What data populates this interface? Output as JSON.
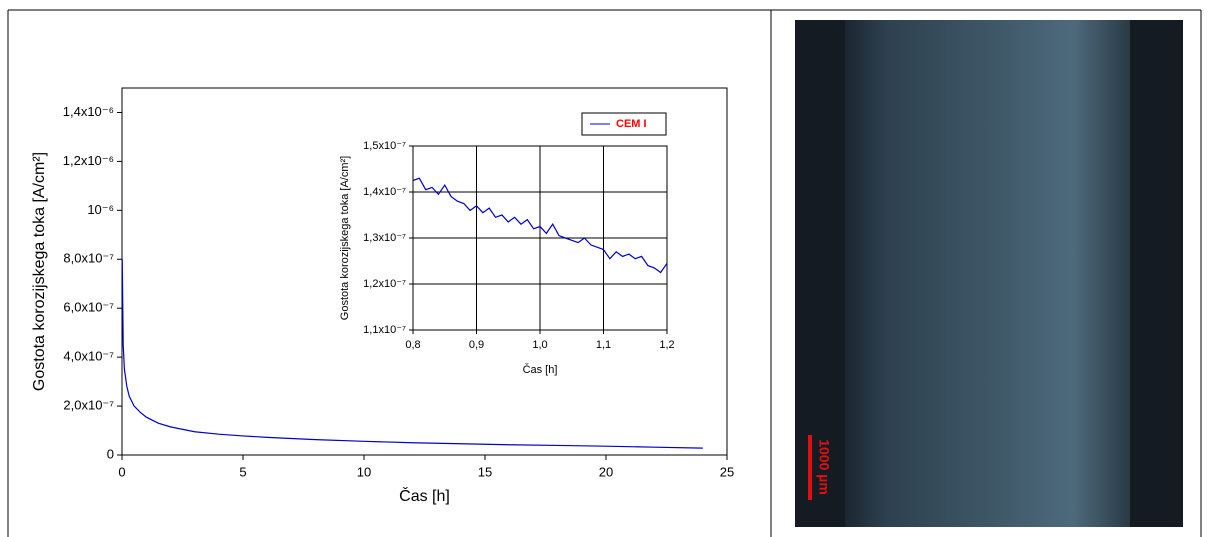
{
  "chart_data": [
    {
      "type": "line",
      "x_label": "Čas [h]",
      "y_label": "Gostota korozijskega toka [A/cm²]",
      "xlim": [
        0,
        25
      ],
      "xticks": [
        0,
        5,
        10,
        15,
        20,
        25
      ],
      "ylim": [
        0,
        1.5e-06
      ],
      "yticks": [
        0,
        {
          "value": 2e-07,
          "label": "2,0x10⁻⁷"
        },
        {
          "value": 4e-07,
          "label": "4,0x10⁻⁷"
        },
        {
          "value": 6e-07,
          "label": "6,0x10⁻⁷"
        },
        {
          "value": 8e-07,
          "label": "8,0x10⁻⁷"
        },
        {
          "value": 1e-06,
          "label": "10⁻⁶"
        },
        {
          "value": 1.2e-06,
          "label": "1,2x10⁻⁶"
        },
        {
          "value": 1.4e-06,
          "label": "1,4x10⁻⁶"
        }
      ],
      "grid": false,
      "legend": "upper right",
      "legend_text_color": "#ff0000",
      "x": [
        0.01,
        0.05,
        0.1,
        0.2,
        0.3,
        0.5,
        0.75,
        1,
        1.5,
        2,
        3,
        4,
        5,
        6,
        8,
        10,
        12,
        14,
        16,
        18,
        20,
        22,
        24
      ],
      "series": [
        {
          "name": "CEM I",
          "color": "#0000cc",
          "values": [
            8e-07,
            4.5e-07,
            3.5e-07,
            2.8e-07,
            2.4e-07,
            2e-07,
            1.75e-07,
            1.55e-07,
            1.3e-07,
            1.15e-07,
            9.5e-08,
            8.5e-08,
            7.8e-08,
            7.2e-08,
            6.3e-08,
            5.6e-08,
            5e-08,
            4.6e-08,
            4.2e-08,
            3.9e-08,
            3.6e-08,
            3.2e-08,
            2.8e-08
          ]
        }
      ]
    },
    {
      "type": "line",
      "x_label": "Čas [h]",
      "y_label": "Gostota korozijskega toka [A/cm²]",
      "xlim": [
        0.8,
        1.2
      ],
      "xticks": [
        {
          "value": 0.8,
          "label": "0,8"
        },
        {
          "value": 0.9,
          "label": "0,9"
        },
        {
          "value": 1.0,
          "label": "1,0"
        },
        {
          "value": 1.1,
          "label": "1,1"
        },
        {
          "value": 1.2,
          "label": "1,2"
        }
      ],
      "ylim": [
        1.1e-07,
        1.5e-07
      ],
      "yticks": [
        {
          "value": 1.1e-07,
          "label": "1,1x10⁻⁷"
        },
        {
          "value": 1.2e-07,
          "label": "1,2x10⁻⁷"
        },
        {
          "value": 1.3e-07,
          "label": "1,3x10⁻⁷"
        },
        {
          "value": 1.4e-07,
          "label": "1,4x10⁻⁷"
        },
        {
          "value": 1.5e-07,
          "label": "1,5x10⁻⁷"
        }
      ],
      "grid": true,
      "x": [
        0.8,
        0.81,
        0.82,
        0.83,
        0.84,
        0.85,
        0.86,
        0.87,
        0.88,
        0.89,
        0.9,
        0.91,
        0.92,
        0.93,
        0.94,
        0.95,
        0.96,
        0.97,
        0.98,
        0.99,
        1.0,
        1.01,
        1.02,
        1.03,
        1.04,
        1.05,
        1.06,
        1.07,
        1.08,
        1.09,
        1.1,
        1.11,
        1.12,
        1.13,
        1.14,
        1.15,
        1.16,
        1.17,
        1.18,
        1.19,
        1.2
      ],
      "series": [
        {
          "color": "#0000cc",
          "values": [
            1.425e-07,
            1.43e-07,
            1.405e-07,
            1.41e-07,
            1.395e-07,
            1.415e-07,
            1.39e-07,
            1.38e-07,
            1.375e-07,
            1.36e-07,
            1.37e-07,
            1.355e-07,
            1.365e-07,
            1.345e-07,
            1.35e-07,
            1.335e-07,
            1.345e-07,
            1.33e-07,
            1.34e-07,
            1.32e-07,
            1.325e-07,
            1.31e-07,
            1.33e-07,
            1.305e-07,
            1.3e-07,
            1.295e-07,
            1.29e-07,
            1.3e-07,
            1.285e-07,
            1.28e-07,
            1.275e-07,
            1.255e-07,
            1.27e-07,
            1.26e-07,
            1.265e-07,
            1.255e-07,
            1.26e-07,
            1.24e-07,
            1.235e-07,
            1.225e-07,
            1.245e-07
          ]
        }
      ]
    }
  ],
  "photo": {
    "scale_label": "1000 µm"
  }
}
